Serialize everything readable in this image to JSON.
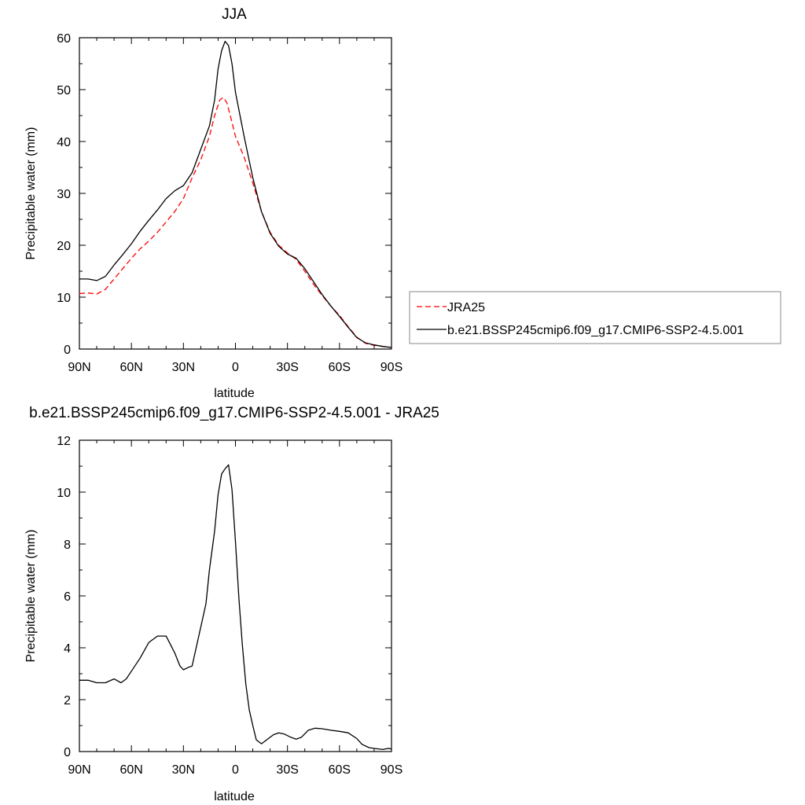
{
  "chart_data": [
    {
      "type": "line",
      "title": "JJA",
      "xlabel": "latitude",
      "ylabel": "Precipitable water (mm)",
      "xlim": [
        90,
        -90
      ],
      "ylim": [
        0,
        60
      ],
      "x_ticks": [
        90,
        60,
        30,
        0,
        -30,
        -60,
        -90
      ],
      "x_tick_labels": [
        "90N",
        "60N",
        "30N",
        "0",
        "30S",
        "60S",
        "90S"
      ],
      "y_ticks": [
        0,
        10,
        20,
        30,
        40,
        50,
        60
      ],
      "y_tick_labels": [
        "0",
        "10",
        "20",
        "30",
        "40",
        "50",
        "60"
      ],
      "grid": false,
      "legend_position": "right",
      "series": [
        {
          "name": "JRA25",
          "color": "#ff0000",
          "dash": "dashed",
          "points": [
            [
              90,
              10.7
            ],
            [
              85,
              10.8
            ],
            [
              80,
              10.6
            ],
            [
              75,
              11.5
            ],
            [
              70,
              13.5
            ],
            [
              65,
              15.5
            ],
            [
              60,
              17.5
            ],
            [
              55,
              19.3
            ],
            [
              50,
              20.8
            ],
            [
              45,
              22.5
            ],
            [
              40,
              24.5
            ],
            [
              35,
              26.5
            ],
            [
              30,
              29
            ],
            [
              25,
              33
            ],
            [
              20,
              36.5
            ],
            [
              15,
              41
            ],
            [
              12,
              45
            ],
            [
              9,
              48
            ],
            [
              7,
              48.5
            ],
            [
              5,
              47.5
            ],
            [
              3,
              45
            ],
            [
              0,
              41
            ],
            [
              -5,
              37
            ],
            [
              -10,
              32
            ],
            [
              -15,
              26.5
            ],
            [
              -20,
              22.5
            ],
            [
              -25,
              20
            ],
            [
              -30,
              18.5
            ],
            [
              -35,
              17.3
            ],
            [
              -40,
              15
            ],
            [
              -45,
              12.5
            ],
            [
              -50,
              10.3
            ],
            [
              -55,
              8.3
            ],
            [
              -60,
              6.5
            ],
            [
              -65,
              4.3
            ],
            [
              -70,
              2.3
            ],
            [
              -75,
              1.1
            ],
            [
              -80,
              0.7
            ],
            [
              -85,
              0.5
            ],
            [
              -90,
              0.3
            ]
          ]
        },
        {
          "name": "b.e21.BSSP245cmip6.f09_g17.CMIP6-SSP2-4.5.001",
          "color": "#000000",
          "dash": "solid",
          "points": [
            [
              90,
              13.5
            ],
            [
              85,
              13.5
            ],
            [
              80,
              13.2
            ],
            [
              75,
              14
            ],
            [
              70,
              16.2
            ],
            [
              65,
              18.2
            ],
            [
              60,
              20.3
            ],
            [
              55,
              22.7
            ],
            [
              50,
              24.8
            ],
            [
              45,
              26.8
            ],
            [
              40,
              29
            ],
            [
              35,
              30.5
            ],
            [
              30,
              31.5
            ],
            [
              25,
              34
            ],
            [
              20,
              38.5
            ],
            [
              15,
              43
            ],
            [
              12,
              48
            ],
            [
              10,
              54
            ],
            [
              8,
              57.5
            ],
            [
              6,
              59.3
            ],
            [
              4,
              58.5
            ],
            [
              2,
              55
            ],
            [
              0,
              49.5
            ],
            [
              -5,
              41
            ],
            [
              -10,
              33
            ],
            [
              -15,
              26.5
            ],
            [
              -20,
              22.3
            ],
            [
              -25,
              19.8
            ],
            [
              -30,
              18.3
            ],
            [
              -35,
              17.5
            ],
            [
              -40,
              15.5
            ],
            [
              -45,
              13
            ],
            [
              -50,
              10.5
            ],
            [
              -55,
              8.3
            ],
            [
              -60,
              6.3
            ],
            [
              -65,
              4.2
            ],
            [
              -70,
              2.2
            ],
            [
              -75,
              1.2
            ],
            [
              -80,
              0.8
            ],
            [
              -85,
              0.5
            ],
            [
              -90,
              0.3
            ]
          ]
        }
      ]
    },
    {
      "type": "line",
      "title": "b.e21.BSSP245cmip6.f09_g17.CMIP6-SSP2-4.5.001 - JRA25",
      "xlabel": "latitude",
      "ylabel": "Precipitable water (mm)",
      "xlim": [
        90,
        -90
      ],
      "ylim": [
        0,
        12
      ],
      "x_ticks": [
        90,
        60,
        30,
        0,
        -30,
        -60,
        -90
      ],
      "x_tick_labels": [
        "90N",
        "60N",
        "30N",
        "0",
        "30S",
        "60S",
        "90S"
      ],
      "y_ticks": [
        0,
        2,
        4,
        6,
        8,
        10,
        12
      ],
      "y_tick_labels": [
        "0",
        "2",
        "4",
        "6",
        "8",
        "10",
        "12"
      ],
      "grid": false,
      "series": [
        {
          "color": "#000000",
          "dash": "solid",
          "points": [
            [
              90,
              2.75
            ],
            [
              85,
              2.75
            ],
            [
              80,
              2.65
            ],
            [
              75,
              2.65
            ],
            [
              70,
              2.8
            ],
            [
              66,
              2.65
            ],
            [
              63,
              2.8
            ],
            [
              60,
              3.1
            ],
            [
              55,
              3.6
            ],
            [
              50,
              4.2
            ],
            [
              45,
              4.45
            ],
            [
              40,
              4.45
            ],
            [
              35,
              3.8
            ],
            [
              32,
              3.3
            ],
            [
              30,
              3.15
            ],
            [
              27,
              3.25
            ],
            [
              25,
              3.3
            ],
            [
              22,
              4.2
            ],
            [
              20,
              4.8
            ],
            [
              17,
              5.7
            ],
            [
              15,
              7
            ],
            [
              12,
              8.5
            ],
            [
              10,
              9.9
            ],
            [
              8,
              10.7
            ],
            [
              6,
              10.9
            ],
            [
              4,
              11.05
            ],
            [
              2,
              10.1
            ],
            [
              0,
              8.1
            ],
            [
              -2,
              5.9
            ],
            [
              -4,
              4.1
            ],
            [
              -6,
              2.6
            ],
            [
              -8,
              1.6
            ],
            [
              -10,
              1
            ],
            [
              -12,
              0.45
            ],
            [
              -15,
              0.3
            ],
            [
              -18,
              0.45
            ],
            [
              -22,
              0.65
            ],
            [
              -25,
              0.72
            ],
            [
              -28,
              0.68
            ],
            [
              -32,
              0.55
            ],
            [
              -35,
              0.48
            ],
            [
              -38,
              0.55
            ],
            [
              -42,
              0.82
            ],
            [
              -46,
              0.9
            ],
            [
              -50,
              0.88
            ],
            [
              -55,
              0.82
            ],
            [
              -60,
              0.78
            ],
            [
              -65,
              0.72
            ],
            [
              -70,
              0.5
            ],
            [
              -73,
              0.28
            ],
            [
              -77,
              0.15
            ],
            [
              -80,
              0.12
            ],
            [
              -85,
              0.08
            ],
            [
              -88,
              0.12
            ],
            [
              -90,
              0.1
            ]
          ]
        }
      ]
    }
  ]
}
